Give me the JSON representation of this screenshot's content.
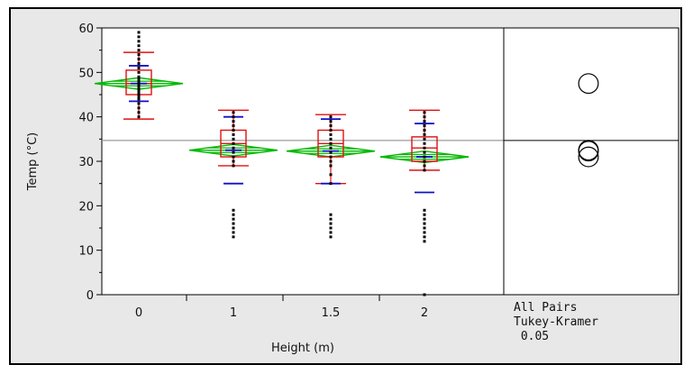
{
  "chart_data": {
    "type": "oneway-anova-plot",
    "xlabel": "Height (m)",
    "ylabel": "Temp (°C)",
    "ylim": [
      0,
      60
    ],
    "yticks": [
      0,
      10,
      20,
      30,
      40,
      50,
      60
    ],
    "categories": [
      "0",
      "1",
      "1.5",
      "2"
    ],
    "grand_mean": 34.7,
    "groups": [
      {
        "label": "0",
        "mean": 47.5,
        "diamond_halfwidth": 1.3,
        "box": {
          "q1": 45,
          "median": 47.5,
          "q3": 50.5,
          "lower_whisker": 39.5,
          "upper_whisker": 54.5
        },
        "std_dev_bars": [
          43.5,
          51.5
        ],
        "points": [
          40,
          41,
          42,
          43,
          44,
          44.5,
          45,
          45.5,
          46,
          46.5,
          47,
          47.5,
          48,
          48.5,
          49,
          50,
          51,
          52,
          53,
          54,
          55,
          56,
          57,
          58,
          59
        ]
      },
      {
        "label": "1",
        "mean": 32.5,
        "diamond_halfwidth": 1.3,
        "box": {
          "q1": 31,
          "median": 34,
          "q3": 37,
          "lower_whisker": 29,
          "upper_whisker": 41.5
        },
        "std_dev_bars": [
          25,
          40
        ],
        "points": [
          13,
          14,
          15,
          16,
          17,
          18,
          19,
          29,
          30,
          31,
          32,
          33,
          34,
          35,
          36,
          37,
          38,
          39,
          40,
          41
        ]
      },
      {
        "label": "1.5",
        "mean": 32.3,
        "diamond_halfwidth": 1.3,
        "box": {
          "q1": 31,
          "median": 34,
          "q3": 37,
          "lower_whisker": 25,
          "upper_whisker": 40.5
        },
        "std_dev_bars": [
          25,
          39.5
        ],
        "points": [
          13,
          14,
          15,
          16,
          17,
          18,
          25,
          27,
          29,
          30,
          31,
          32,
          33,
          34,
          35,
          36,
          37,
          38,
          39,
          40
        ]
      },
      {
        "label": "2",
        "mean": 31,
        "diamond_halfwidth": 1.3,
        "box": {
          "q1": 30,
          "median": 33,
          "q3": 35.5,
          "lower_whisker": 28,
          "upper_whisker": 41.5
        },
        "std_dev_bars": [
          23,
          38.5
        ],
        "points": [
          0,
          12,
          13,
          14,
          15,
          16,
          17,
          18,
          19,
          28,
          29,
          30,
          31,
          32,
          33,
          34,
          35,
          36,
          37,
          38,
          39,
          40,
          41
        ]
      }
    ],
    "comparison_circles": {
      "label_lines": [
        "All Pairs",
        "Tukey-Kramer",
        " 0.05"
      ],
      "circles": [
        {
          "center": 47.5,
          "radius": 2.2
        },
        {
          "center": 32.5,
          "radius": 2.2
        },
        {
          "center": 32.3,
          "radius": 2.2
        },
        {
          "center": 31,
          "radius": 2.2
        }
      ]
    },
    "colors": {
      "diamond": "#00b800",
      "box": "#e01010",
      "std_dev": "#1010c8",
      "points": "#000000",
      "grand_mean_line": "#808080",
      "plot_background": "#ffffff",
      "frame_background": "#e8e8e8"
    }
  }
}
